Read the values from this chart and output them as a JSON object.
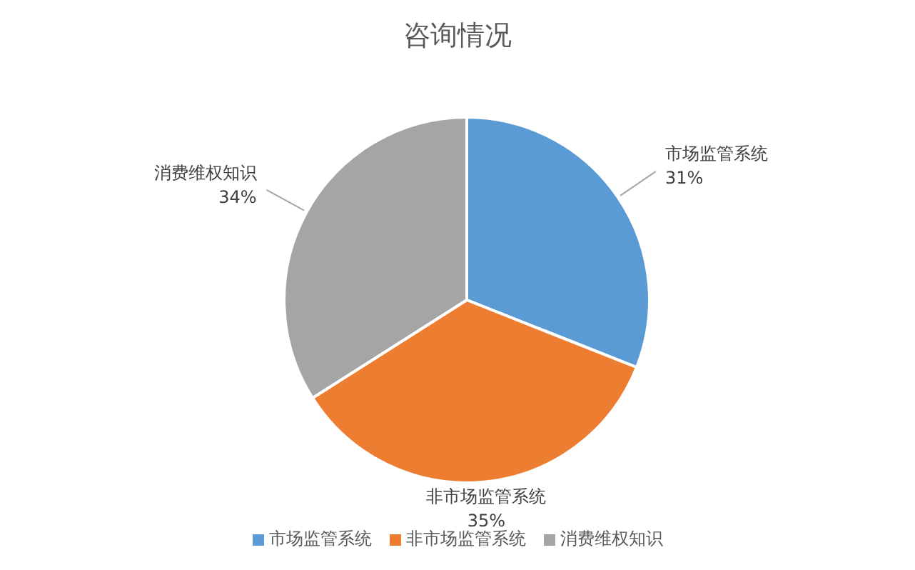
{
  "chart_data": {
    "type": "pie",
    "title": "咨询情况",
    "categories": [
      "市场监管系统",
      "非市场监管系统",
      "消费维权知识"
    ],
    "values": [
      31,
      35,
      34
    ],
    "value_labels": [
      "31%",
      "35%",
      "34%"
    ],
    "colors": [
      "#5b9bd5",
      "#ed7d31",
      "#a5a5a5"
    ],
    "legend": "bottom"
  }
}
